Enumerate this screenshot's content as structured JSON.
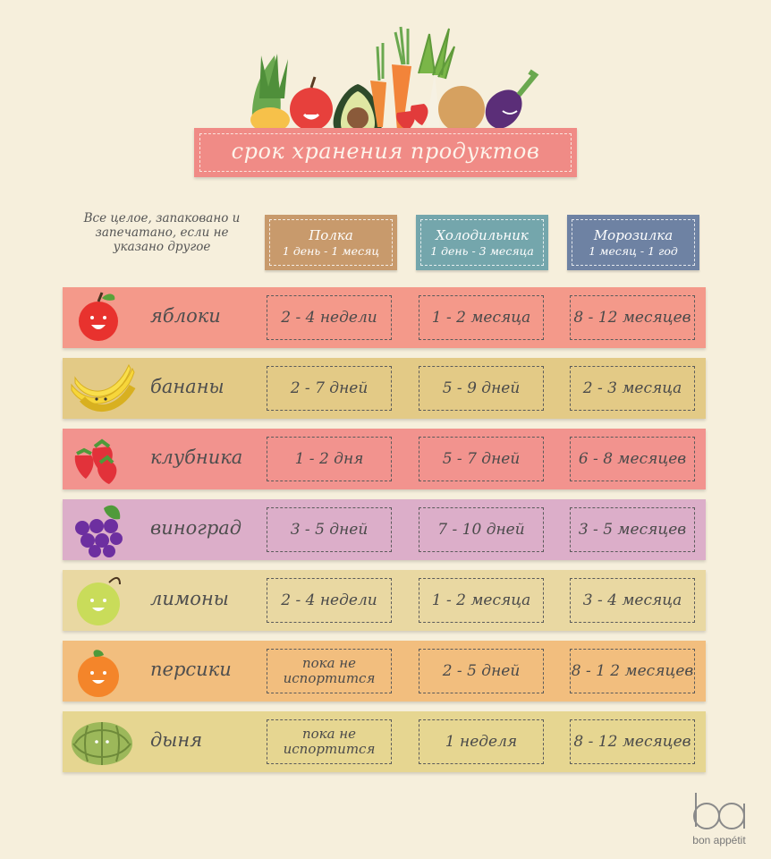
{
  "title": "срок хранения продуктов",
  "note": "Все целое, запаковано и запечатано, если не указано другое",
  "columns": [
    {
      "name": "Полка",
      "range": "1 день - 1 месяц",
      "color": "#c89a6c"
    },
    {
      "name": "Холодильник",
      "range": "1 день - 3 месяца",
      "color": "#74a6ac"
    },
    {
      "name": "Морозилка",
      "range": "1 месяц - 1 год",
      "color": "#6e82a3"
    }
  ],
  "rows": [
    {
      "label": "яблоки",
      "color": "#f4998a",
      "fruit": "apple-icon",
      "values": [
        "2 - 4 недели",
        "1 - 2 месяца",
        "8 - 12 месяцев"
      ]
    },
    {
      "label": "бананы",
      "color": "#e3ca86",
      "fruit": "banana-icon",
      "values": [
        "2 - 7 дней",
        "5 - 9 дней",
        "2 - 3 месяца"
      ]
    },
    {
      "label": "клубника",
      "color": "#f2938e",
      "fruit": "strawberry-icon",
      "values": [
        "1 - 2 дня",
        "5 - 7 дней",
        "6 - 8 месяцев"
      ]
    },
    {
      "label": "виноград",
      "color": "#dcaec9",
      "fruit": "grapes-icon",
      "values": [
        "3 - 5 дней",
        "7 - 10 дней",
        "3 - 5 месяцев"
      ]
    },
    {
      "label": "лимоны",
      "color": "#e9d8a2",
      "fruit": "lemon-icon",
      "values": [
        "2 - 4 недели",
        "1 - 2 месяца",
        "3 - 4 месяца"
      ]
    },
    {
      "label": "персики",
      "color": "#f2be7e",
      "fruit": "peach-icon",
      "values": [
        "пока не испортится",
        "2 - 5 дней",
        "8 - 1 2 месяцев"
      ]
    },
    {
      "label": "дыня",
      "color": "#e6d691",
      "fruit": "melon-icon",
      "values": [
        "пока не испортится",
        "1 неделя",
        "8 - 12 месяцев"
      ]
    }
  ],
  "logo": {
    "text": "bon appétit"
  }
}
